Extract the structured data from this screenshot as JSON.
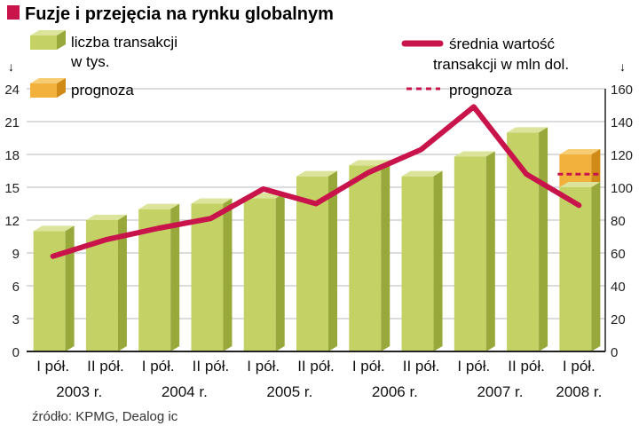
{
  "chart_data": {
    "type": "bar+line",
    "title": "Fuzje i przejęcia na rynku globalnym",
    "categories": [
      "I pół.",
      "II pół.",
      "I pół.",
      "II pół.",
      "I pół.",
      "II pół.",
      "I pół.",
      "II pół.",
      "I pół.",
      "II pół.",
      "I pół."
    ],
    "years": [
      "2003 r.",
      "2004 r.",
      "2005 r.",
      "2006 r.",
      "2007 r.",
      "2008 r."
    ],
    "bars": {
      "name": "liczba transakcji w tys.",
      "values": [
        11,
        12,
        13,
        13.5,
        14,
        16,
        17,
        16,
        17.8,
        20,
        15
      ],
      "forecast_top": 18,
      "forecast_label": "prognoza"
    },
    "line": {
      "name": "średnia wartość transakcji w mln dol.",
      "values": [
        58,
        68,
        75,
        81,
        99,
        90,
        109,
        123,
        149,
        108,
        89
      ],
      "forecast_value": 108,
      "forecast_label": "prognoza"
    },
    "left_axis": {
      "min": 0,
      "max": 24,
      "ticks": [
        0,
        3,
        6,
        9,
        12,
        15,
        18,
        21,
        24
      ]
    },
    "right_axis": {
      "min": 0,
      "max": 160,
      "ticks": [
        0,
        20,
        40,
        60,
        80,
        100,
        120,
        140,
        160
      ]
    },
    "legend": {
      "bars_label_line1": "liczba transakcji",
      "bars_label_line2": "w tys.",
      "line_label_line1": "średnia wartość",
      "line_label_line2": "transakcji w mln dol.",
      "forecast_bar_label": "prognoza",
      "forecast_line_label": "prognoza"
    },
    "axis_arrow": "↓",
    "source": "źródło: KPMG, Dealog ic"
  },
  "colors": {
    "bar_front": "#c4d165",
    "bar_top": "#dbe49a",
    "bar_side": "#98a83a",
    "forecast_front": "#f2b03c",
    "forecast_top": "#f7cd74",
    "forecast_side": "#d08a18",
    "line": "#c8144a",
    "grid": "#b8b8b8",
    "title_square": "#c8144a"
  }
}
